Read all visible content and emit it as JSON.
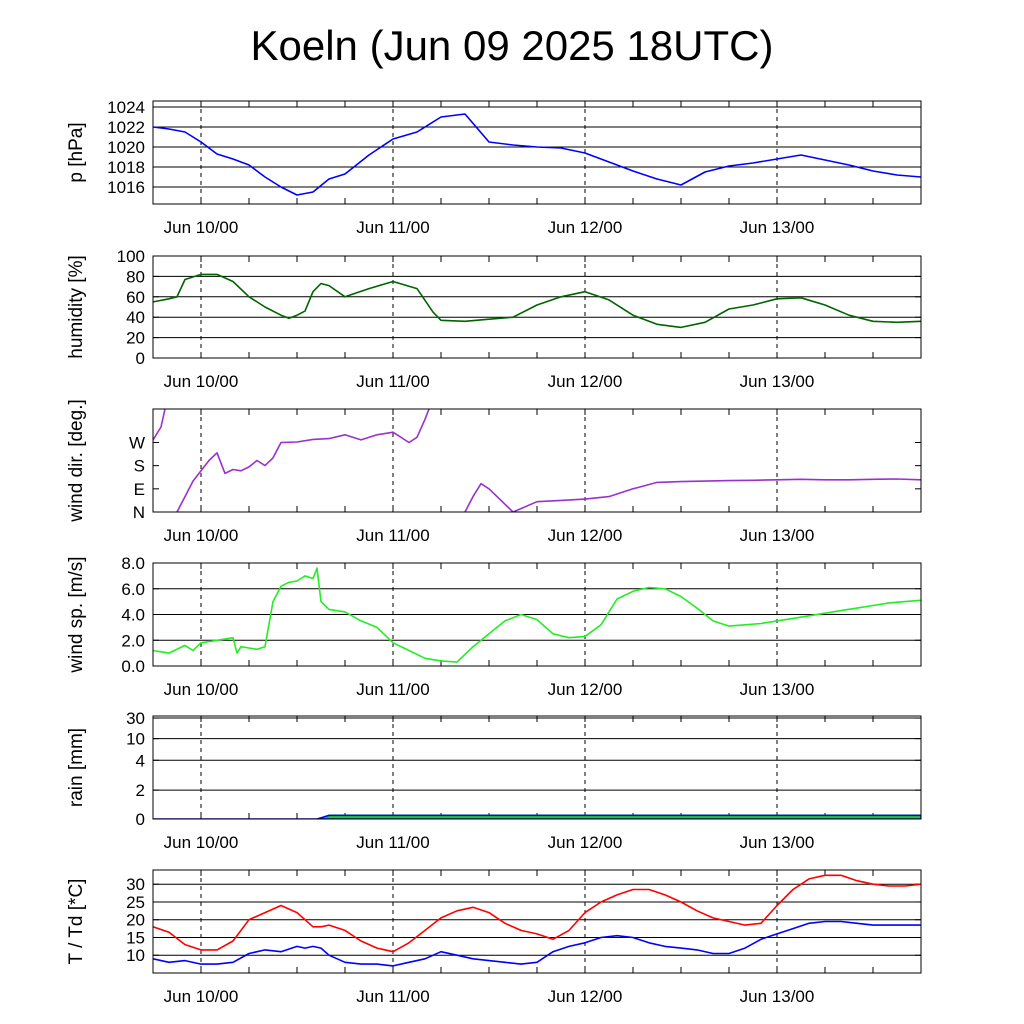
{
  "title": "Koeln (Jun 09 2025 18UTC)",
  "x_tick_labels": [
    "Jun 10/00",
    "Jun 11/00",
    "Jun 12/00",
    "Jun 13/00"
  ],
  "chart_data": [
    {
      "type": "line",
      "ylabel": "p [hPa]",
      "ylim": [
        1014.3,
        1024.6
      ],
      "yticks": [
        1016,
        1018,
        1020,
        1022,
        1024
      ],
      "ytick_labels": [
        "1016",
        "1018",
        "1020",
        "1022",
        "1024"
      ],
      "grid": true,
      "x_hours": [
        0,
        2,
        4,
        6,
        8,
        10,
        12,
        14,
        16,
        18,
        20,
        22,
        24,
        27,
        30,
        33,
        36,
        39,
        42,
        45,
        48,
        51,
        54,
        57,
        60,
        63,
        66,
        69,
        72,
        75,
        78,
        81,
        84,
        87,
        90,
        93,
        96
      ],
      "series": [
        {
          "color": "#0000ff",
          "values": [
            1022.0,
            1021.8,
            1021.5,
            1020.5,
            1019.3,
            1018.8,
            1018.2,
            1017.0,
            1016.0,
            1015.2,
            1015.5,
            1016.8,
            1017.3,
            1019.2,
            1020.8,
            1021.5,
            1023.0,
            1023.3,
            1020.5,
            1020.2,
            1020.0,
            1019.9,
            1019.4,
            1018.5,
            1017.6,
            1016.8,
            1016.2,
            1017.5,
            1018.1,
            1018.4,
            1018.8,
            1019.2,
            1018.7,
            1018.2,
            1017.6,
            1017.2,
            1017.0
          ]
        }
      ]
    },
    {
      "type": "line",
      "ylabel": "humidity [%]",
      "ylim": [
        0,
        100
      ],
      "yticks": [
        0,
        20,
        40,
        60,
        80,
        100
      ],
      "ytick_labels": [
        "0",
        "20",
        "40",
        "60",
        "80",
        "100"
      ],
      "grid": true,
      "x_hours": [
        0,
        2,
        3,
        4,
        6,
        8,
        10,
        12,
        14,
        16,
        17,
        18,
        19,
        20,
        21,
        22,
        24,
        27,
        30,
        33,
        35,
        36,
        39,
        42,
        45,
        48,
        51,
        54,
        57,
        60,
        63,
        66,
        69,
        72,
        75,
        78,
        81,
        84,
        87,
        90,
        93,
        96
      ],
      "series": [
        {
          "color": "#006400",
          "values": [
            55,
            58,
            60,
            77,
            82,
            82,
            75,
            60,
            50,
            42,
            39,
            42,
            46,
            65,
            73,
            71,
            60,
            68,
            75,
            68,
            45,
            37,
            36,
            38,
            40,
            52,
            60,
            65,
            57,
            42,
            33,
            30,
            35,
            48,
            52,
            58,
            59,
            52,
            42,
            36,
            35,
            36
          ]
        }
      ]
    },
    {
      "type": "line",
      "ylabel": "wind dir. [deg.]",
      "ylim": [
        0,
        400
      ],
      "yticks": [
        0,
        90,
        180,
        270
      ],
      "ytick_labels": [
        "N",
        "E",
        "S",
        "W"
      ],
      "grid": false,
      "x_hours": [
        0,
        1,
        1.5,
        2,
        3,
        4,
        5,
        6,
        7,
        8,
        9,
        10,
        11,
        12,
        13,
        14,
        15,
        16,
        18,
        20,
        22,
        24,
        26,
        28,
        30,
        32,
        33,
        34,
        34.5,
        35,
        37,
        38,
        39,
        40,
        41,
        42,
        45,
        48,
        51,
        54,
        57,
        60,
        63,
        66,
        69,
        72,
        75,
        78,
        81,
        84,
        87,
        90,
        93,
        96
      ],
      "series": [
        {
          "color": "#9932cc",
          "values": [
            280,
            330,
            400,
            null,
            0,
            60,
            120,
            160,
            200,
            230,
            150,
            165,
            160,
            175,
            200,
            180,
            210,
            270,
            272,
            282,
            285,
            300,
            280,
            300,
            310,
            270,
            290,
            360,
            400,
            null,
            400,
            null,
            0,
            60,
            110,
            90,
            0,
            40,
            45,
            50,
            60,
            90,
            115,
            118,
            120,
            122,
            123,
            125,
            127,
            125,
            125,
            127,
            128,
            125
          ]
        }
      ]
    },
    {
      "type": "line",
      "ylabel": "wind sp. [m/s]",
      "ylim": [
        0,
        8
      ],
      "yticks": [
        0,
        2,
        4,
        6,
        8
      ],
      "ytick_labels": [
        "0.0",
        "2.0",
        "4.0",
        "6.0",
        "8.0"
      ],
      "grid": true,
      "x_hours": [
        0,
        2,
        4,
        5,
        6,
        8,
        10,
        10.5,
        11,
        12,
        13,
        14,
        15,
        16,
        17,
        18,
        19,
        20,
        20.5,
        21,
        22,
        24,
        26,
        28,
        30,
        32,
        34,
        36,
        38,
        40,
        42,
        44,
        46,
        48,
        50,
        52,
        54,
        56,
        58,
        60,
        62,
        64,
        66,
        68,
        70,
        72,
        74,
        76,
        78,
        80,
        82,
        84,
        86,
        88,
        90,
        92,
        94,
        96
      ],
      "series": [
        {
          "color": "#22ee22",
          "values": [
            1.2,
            1.0,
            1.6,
            1.2,
            1.8,
            2.0,
            2.2,
            1.0,
            1.5,
            1.4,
            1.3,
            1.5,
            5.0,
            6.2,
            6.5,
            6.6,
            7.0,
            6.8,
            7.6,
            5.0,
            4.4,
            4.2,
            3.5,
            3.0,
            1.8,
            1.2,
            0.6,
            0.4,
            0.3,
            1.5,
            2.5,
            3.5,
            4.0,
            3.6,
            2.5,
            2.2,
            2.3,
            3.2,
            5.2,
            5.8,
            6.1,
            6.0,
            5.4,
            4.5,
            3.5,
            3.1,
            3.2,
            3.3,
            3.5,
            3.7,
            3.9,
            4.1,
            4.3,
            4.5,
            4.7,
            4.9,
            5.0,
            5.1
          ]
        }
      ]
    },
    {
      "type": "area",
      "ylabel": "rain [mm]",
      "ylim": [
        0,
        30
      ],
      "yticks": [
        0,
        2,
        4,
        10,
        30
      ],
      "ytick_labels": [
        "0",
        "2",
        "4",
        "10",
        "30"
      ],
      "grid": true,
      "x_hours": [
        0,
        20.5,
        22,
        25,
        96
      ],
      "series": [
        {
          "color": "#22cc22",
          "values": [
            0,
            0,
            0.3,
            0.3,
            0.3
          ]
        },
        {
          "color": "#0000ff",
          "values": [
            0,
            0,
            0.25,
            0.25,
            0.25
          ]
        }
      ]
    },
    {
      "type": "line",
      "ylabel": "T / Td [*C]",
      "ylim": [
        5,
        34
      ],
      "yticks": [
        10,
        15,
        20,
        25,
        30
      ],
      "ytick_labels": [
        "10",
        "15",
        "20",
        "25",
        "30"
      ],
      "grid": true,
      "x_hours": [
        0,
        2,
        4,
        6,
        8,
        10,
        12,
        14,
        16,
        18,
        19,
        20,
        21,
        22,
        24,
        26,
        28,
        30,
        32,
        34,
        36,
        38,
        40,
        42,
        44,
        46,
        48,
        50,
        52,
        54,
        56,
        58,
        60,
        62,
        64,
        66,
        68,
        70,
        72,
        74,
        76,
        78,
        80,
        82,
        84,
        86,
        88,
        90,
        92,
        94,
        96
      ],
      "series": [
        {
          "name": "T",
          "color": "#ff0000",
          "values": [
            18,
            16.5,
            13,
            11.5,
            11.5,
            14,
            20,
            22,
            24,
            22,
            20,
            18,
            18,
            18.5,
            17,
            14,
            12,
            11,
            13.5,
            17,
            20.5,
            22.5,
            23.5,
            22,
            19,
            17,
            16,
            14.5,
            17,
            22,
            25,
            27,
            28.5,
            28.5,
            27,
            25,
            22.5,
            20.5,
            19.5,
            18.5,
            19,
            24,
            28.5,
            31.5,
            32.5,
            32.5,
            31,
            30,
            29.5,
            29.5,
            30
          ]
        },
        {
          "name": "Td",
          "color": "#0000ff",
          "values": [
            9,
            8,
            8.5,
            7.5,
            7.5,
            8,
            10.5,
            11.5,
            11,
            12.5,
            12,
            12.5,
            12,
            10,
            8,
            7.5,
            7.5,
            7,
            8,
            9,
            11,
            10,
            9,
            8.5,
            8,
            7.5,
            8,
            11,
            12.5,
            13.5,
            15,
            15.5,
            15,
            13.5,
            12.5,
            12,
            11.5,
            10.5,
            10.5,
            12,
            14.5,
            16,
            17.5,
            19,
            19.5,
            19.5,
            19,
            18.5,
            18.5,
            18.5,
            18.5
          ]
        }
      ]
    }
  ]
}
